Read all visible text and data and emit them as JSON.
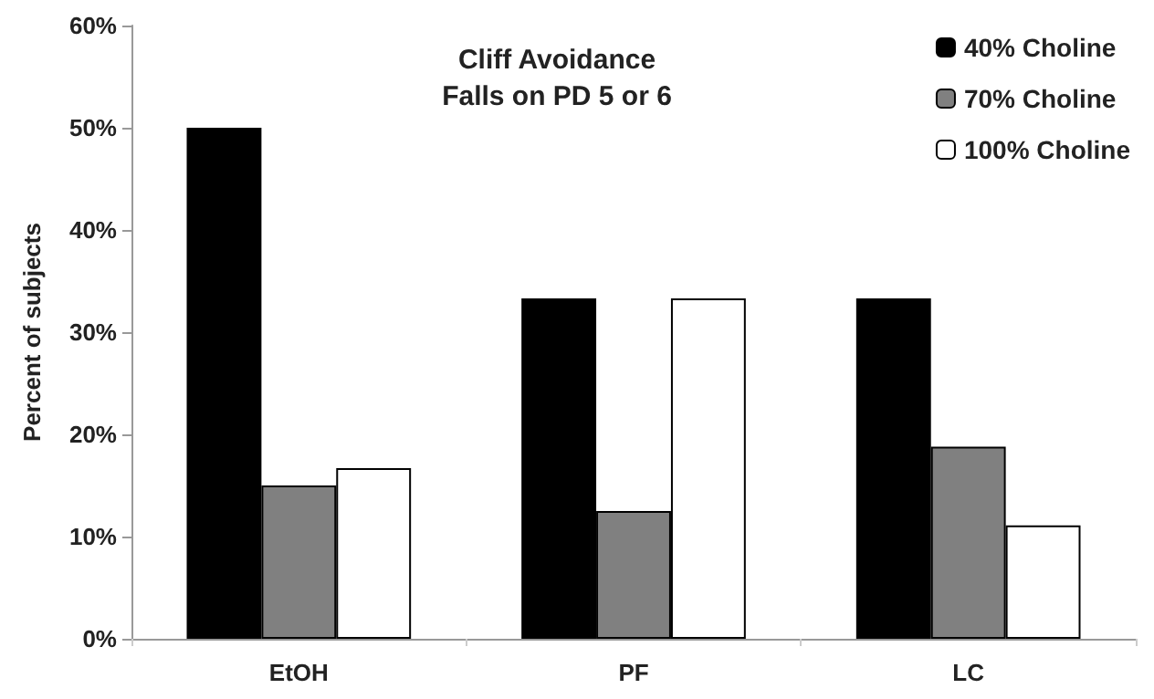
{
  "chart_data": {
    "type": "bar",
    "title": "Cliff Avoidance\nFalls on PD 5 or 6",
    "ylabel": "Percent of subjects",
    "categories": [
      "EtOH",
      "PF",
      "LC"
    ],
    "series": [
      {
        "name": "40% Choline",
        "color": "#000000",
        "values": [
          50,
          33.3,
          33.3
        ]
      },
      {
        "name": "70% Choline",
        "color": "#808080",
        "values": [
          15,
          12.5,
          18.8
        ]
      },
      {
        "name": "100% Choline",
        "color": "#ffffff",
        "values": [
          16.7,
          33.3,
          11.1
        ]
      }
    ],
    "ylim": [
      0,
      60
    ],
    "yticks": [
      {
        "value": 0,
        "label": "0%"
      },
      {
        "value": 10,
        "label": "10%"
      },
      {
        "value": 20,
        "label": "20%"
      },
      {
        "value": 30,
        "label": "30%"
      },
      {
        "value": 40,
        "label": "40%"
      },
      {
        "value": 50,
        "label": "50%"
      },
      {
        "value": 60,
        "label": "60%"
      }
    ],
    "grid": false,
    "legend": "top right"
  }
}
